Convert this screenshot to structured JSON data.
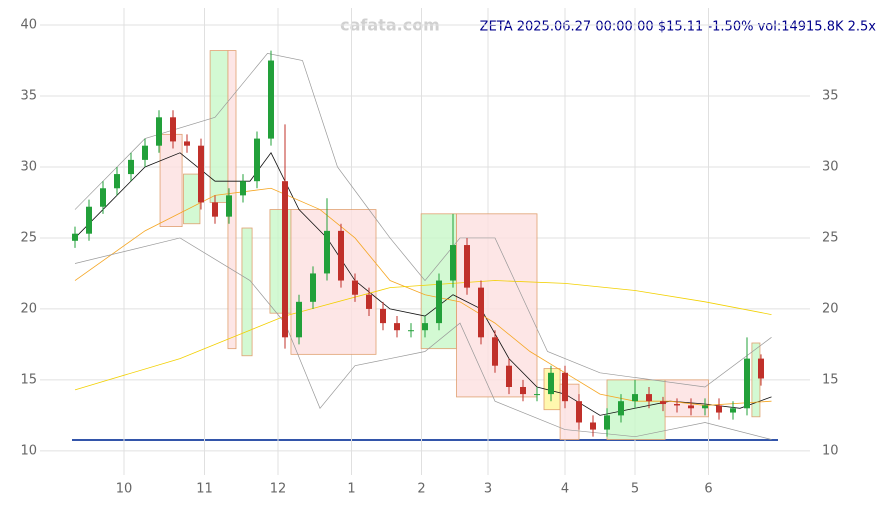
{
  "chart_data": {
    "type": "candlestick",
    "title": "ZETA 2025.06.27 00:00:00 $15.11 -1.50% vol:14915.8K 2.5x",
    "watermark": "cafata.com",
    "xlim": [
      -10,
      210
    ],
    "ylim": [
      8.3,
      41.2
    ],
    "y2lim": [
      8.3,
      41.2
    ],
    "xticks": [
      {
        "value": 14,
        "label": "10"
      },
      {
        "value": 37,
        "label": "11"
      },
      {
        "value": 58,
        "label": "12"
      },
      {
        "value": 79,
        "label": "1"
      },
      {
        "value": 99,
        "label": "2"
      },
      {
        "value": 118,
        "label": "3"
      },
      {
        "value": 140,
        "label": "4"
      },
      {
        "value": 160,
        "label": "5"
      },
      {
        "value": 181,
        "label": "6"
      }
    ],
    "yticks": [
      10,
      15,
      20,
      25,
      30,
      35,
      40
    ],
    "y2ticks": [
      10,
      15,
      20,
      25,
      30,
      35
    ],
    "grid": true,
    "up_color": "#22a03a",
    "down_color": "#c0302a",
    "x": [
      0,
      4,
      8,
      12,
      16,
      20,
      24,
      28,
      32,
      36,
      40,
      44,
      48,
      52,
      56,
      60,
      64,
      68,
      72,
      76,
      80,
      84,
      88,
      92,
      96,
      100,
      104,
      108,
      112,
      116,
      120,
      124,
      128,
      132,
      136,
      140,
      144,
      148,
      152,
      156,
      160,
      164,
      168,
      172,
      176,
      180,
      184,
      188,
      192,
      196
    ],
    "open": [
      24.8,
      25.3,
      27.2,
      28.5,
      29.5,
      30.5,
      31.5,
      33.5,
      31.8,
      31.5,
      27.5,
      26.5,
      28,
      29,
      32,
      29,
      18,
      20.5,
      22.5,
      25.5,
      22,
      21,
      20,
      19,
      18.5,
      18.5,
      19,
      22,
      24.5,
      21.5,
      18,
      16,
      14.5,
      14,
      14,
      15.5,
      13.5,
      12,
      11.5,
      12.5,
      13.5,
      14,
      13.5,
      13.3,
      13.2,
      13,
      13.2,
      12.7,
      13,
      16.5
    ],
    "high": [
      25.8,
      27.7,
      29,
      30,
      31,
      32,
      34,
      34,
      32.3,
      32,
      28,
      28.5,
      29.5,
      32.5,
      38.2,
      33,
      21,
      23,
      27.8,
      26,
      22.5,
      21.5,
      20.5,
      19.5,
      19,
      19.5,
      22.5,
      26.7,
      25,
      22,
      18.5,
      16.5,
      15,
      14.5,
      16,
      16,
      14,
      12.5,
      13,
      14,
      15,
      14.5,
      13.8,
      13.7,
      13.7,
      13.7,
      13.7,
      13.5,
      18,
      16.8
    ],
    "low": [
      24.3,
      24.8,
      26.7,
      28,
      29,
      30,
      31,
      31.3,
      31,
      27,
      26,
      26,
      27.5,
      28.5,
      31.5,
      17.2,
      17.5,
      20,
      22,
      21.5,
      20.5,
      19.5,
      18.5,
      18,
      18,
      18,
      18.5,
      21.5,
      21,
      17.5,
      15.5,
      14,
      13.5,
      13.5,
      13.5,
      13,
      11.5,
      11,
      11,
      12,
      13,
      13,
      12.8,
      12.7,
      12.5,
      12.5,
      12.2,
      12.2,
      12.5,
      14.6
    ],
    "close": [
      25.3,
      27.2,
      28.5,
      29.5,
      30.5,
      31.5,
      33.5,
      31.8,
      31.5,
      27.5,
      26.5,
      28,
      29,
      32,
      37.5,
      18,
      20.5,
      22.5,
      25.5,
      22,
      21,
      20,
      19,
      18.5,
      18.5,
      19,
      22,
      24.5,
      21.5,
      18,
      16,
      14.5,
      14,
      14,
      15.5,
      13.5,
      12,
      11.5,
      12.5,
      13.5,
      14,
      13.5,
      13.3,
      13.2,
      13,
      13.2,
      12.7,
      13,
      16.5,
      15.1
    ],
    "lines": [
      {
        "color": "#111111",
        "width": 0.8,
        "x": [
          0,
          10,
          20,
          30,
          40,
          50,
          56,
          64,
          72,
          80,
          90,
          100,
          108,
          116,
          124,
          132,
          140,
          150,
          160,
          170,
          180,
          190,
          199
        ],
        "values": [
          25,
          27.5,
          30,
          31,
          29,
          29,
          31,
          27,
          25,
          22,
          20,
          19.5,
          21,
          20,
          16.5,
          14.5,
          14,
          12.5,
          13,
          13.5,
          13.3,
          13,
          13.8
        ]
      },
      {
        "color": "#f5a623",
        "width": 0.8,
        "x": [
          0,
          20,
          40,
          56,
          70,
          80,
          90,
          100,
          110,
          120,
          130,
          140,
          150,
          160,
          170,
          180,
          199
        ],
        "values": [
          22,
          25.5,
          28,
          28.5,
          27,
          25,
          22,
          21,
          20.5,
          19,
          17,
          15.5,
          14,
          13.5,
          13.5,
          13.2,
          13.5
        ]
      },
      {
        "color": "#f2d000",
        "width": 0.8,
        "x": [
          0,
          30,
          60,
          90,
          120,
          140,
          160,
          180,
          199
        ],
        "values": [
          14.3,
          16.5,
          19.5,
          21.5,
          22,
          21.8,
          21.3,
          20.5,
          19.6
        ]
      },
      {
        "color": "#999999",
        "width": 0.7,
        "x": [
          0,
          20,
          40,
          55,
          65,
          75,
          90,
          100,
          110,
          120,
          135,
          150,
          165,
          180,
          199
        ],
        "values": [
          27,
          32,
          33.5,
          38,
          37.5,
          30,
          25,
          22,
          25,
          25,
          17,
          15.5,
          15,
          14.5,
          18
        ]
      },
      {
        "color": "#999999",
        "width": 0.7,
        "x": [
          0,
          30,
          50,
          60,
          70,
          80,
          100,
          110,
          120,
          140,
          160,
          180,
          199
        ],
        "values": [
          23.2,
          25,
          22,
          19,
          13,
          16,
          17,
          19,
          13.5,
          11.5,
          11,
          12,
          10.8
        ]
      }
    ],
    "zones": [
      {
        "x0": 24.3,
        "x1": 30.6,
        "y0": 25.8,
        "y1": 32.3,
        "color": "#fde0e0"
      },
      {
        "x0": 31,
        "x1": 35.7,
        "y0": 26,
        "y1": 29.5,
        "color": "#c8f7c8"
      },
      {
        "x0": 38.6,
        "x1": 43.7,
        "y0": 27.5,
        "y1": 38.2,
        "color": "#c8f7c8"
      },
      {
        "x0": 43.7,
        "x1": 46,
        "y0": 17.2,
        "y1": 38.2,
        "color": "#fde0e0"
      },
      {
        "x0": 47.7,
        "x1": 50.6,
        "y0": 16.7,
        "y1": 25.7,
        "color": "#c8f7c8"
      },
      {
        "x0": 55.7,
        "x1": 61.7,
        "y0": 19.7,
        "y1": 27,
        "color": "#c8f7c8"
      },
      {
        "x0": 61.7,
        "x1": 86,
        "y0": 16.8,
        "y1": 27,
        "color": "#fde0e0"
      },
      {
        "x0": 98.9,
        "x1": 109,
        "y0": 17.2,
        "y1": 26.7,
        "color": "#c8f7c8"
      },
      {
        "x0": 109,
        "x1": 132,
        "y0": 13.8,
        "y1": 26.7,
        "color": "#fde0e0"
      },
      {
        "x0": 134,
        "x1": 138.6,
        "y0": 12.9,
        "y1": 15.8,
        "color": "#fff59a"
      },
      {
        "x0": 138.6,
        "x1": 144,
        "y0": 10.8,
        "y1": 14.7,
        "color": "#fde0e0"
      },
      {
        "x0": 152,
        "x1": 168.6,
        "y0": 10.8,
        "y1": 15,
        "color": "#c8f7c8"
      },
      {
        "x0": 168.6,
        "x1": 181,
        "y0": 12.4,
        "y1": 15,
        "color": "#fde0e0"
      },
      {
        "x0": 193.4,
        "x1": 195.7,
        "y0": 12.4,
        "y1": 17.6,
        "color": "#c8f7c8"
      }
    ]
  }
}
